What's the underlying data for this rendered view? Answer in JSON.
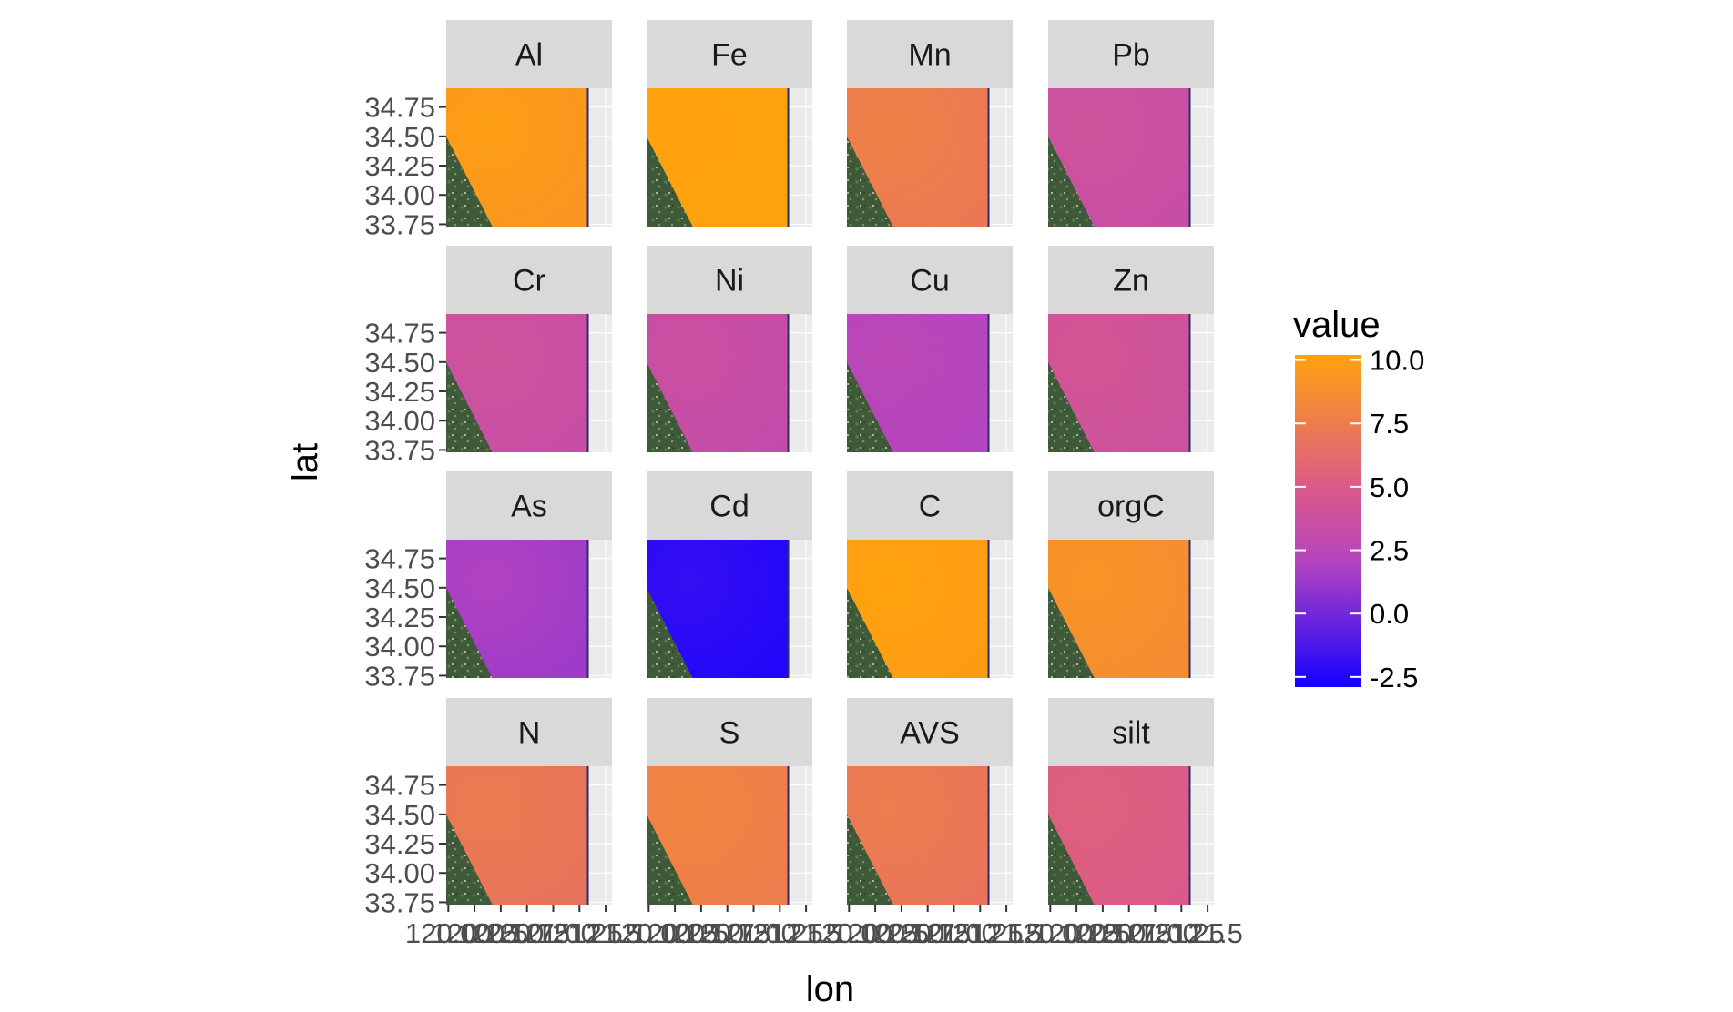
{
  "chart_data": {
    "type": "heatmap",
    "facet_layout": {
      "rows": 4,
      "cols": 4
    },
    "xlabel": "lon",
    "ylabel": "lat",
    "x_ticks": [
      "120.00",
      "120.25",
      "120.50",
      "120.75",
      "121.00",
      "121.25",
      "121.5"
    ],
    "x_tick_values": [
      120.0,
      120.25,
      120.5,
      120.75,
      121.0,
      121.25,
      121.5
    ],
    "xlim": [
      119.98,
      121.56
    ],
    "y_ticks": [
      "33.75",
      "34.00",
      "34.25",
      "34.50",
      "34.75"
    ],
    "y_tick_values": [
      33.75,
      34.0,
      34.25,
      34.5,
      34.75
    ],
    "ylim": [
      33.73,
      34.91
    ],
    "legend": {
      "title": "value",
      "position": "right",
      "range": [
        -2.9,
        10.2
      ],
      "ticks": [
        "10.0",
        "7.5",
        "5.0",
        "2.5",
        "0.0",
        "-2.5"
      ],
      "tick_values": [
        10.0,
        7.5,
        5.0,
        2.5,
        0.0,
        -2.5
      ],
      "gradient": [
        {
          "value": -2.9,
          "color": "#1400ff"
        },
        {
          "value": 2.0,
          "color": "#b444c0"
        },
        {
          "value": 5.0,
          "color": "#dc5a88"
        },
        {
          "value": 10.2,
          "color": "#ffa20d"
        }
      ]
    },
    "land_color": "#3f5a38",
    "grid": true,
    "panels": [
      {
        "label": "Al",
        "mean_value": 9.3
      },
      {
        "label": "Fe",
        "mean_value": 10.1
      },
      {
        "label": "Mn",
        "mean_value": 7.2
      },
      {
        "label": "Pb",
        "mean_value": 3.4
      },
      {
        "label": "Cr",
        "mean_value": 3.4
      },
      {
        "label": "Ni",
        "mean_value": 3.1
      },
      {
        "label": "Cu",
        "mean_value": 2.0
      },
      {
        "label": "Zn",
        "mean_value": 3.8
      },
      {
        "label": "As",
        "mean_value": 1.3
      },
      {
        "label": "Cd",
        "mean_value": -2.5
      },
      {
        "label": "C",
        "mean_value": 9.8
      },
      {
        "label": "orgC",
        "mean_value": 8.6
      },
      {
        "label": "N",
        "mean_value": 6.8
      },
      {
        "label": "S",
        "mean_value": 7.5
      },
      {
        "label": "AVS",
        "mean_value": 6.9
      },
      {
        "label": "silt",
        "mean_value": 4.9
      }
    ]
  }
}
